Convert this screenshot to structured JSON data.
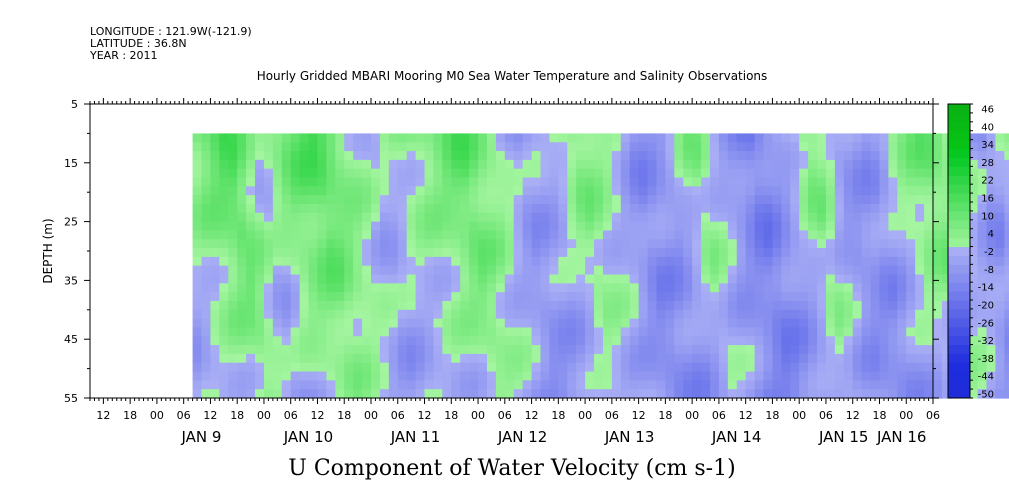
{
  "header": {
    "longitude": "LONGITUDE : 121.9W(-121.9)",
    "latitude": "LATITUDE : 36.8N",
    "year": "YEAR : 2011"
  },
  "chart_data": {
    "type": "heatmap",
    "title": "Hourly Gridded MBARI Mooring M0 Sea Water Temperature and Salinity Observations",
    "xlabel": "U Component of Water Velocity (cm s-1)",
    "ylabel": "DEPTH (m)",
    "y_ticks": [
      "5",
      "15",
      "25",
      "35",
      "45",
      "55"
    ],
    "y_tick_values": [
      5,
      15,
      25,
      35,
      45,
      55
    ],
    "ylim": [
      5,
      55
    ],
    "data_depth_range": [
      10,
      55
    ],
    "x_hour_ticks": [
      "12",
      "18",
      "00",
      "06",
      "12",
      "18",
      "00",
      "06",
      "12",
      "18",
      "00",
      "06",
      "12",
      "18",
      "00",
      "06",
      "12",
      "18",
      "00",
      "06",
      "12",
      "18",
      "00",
      "06",
      "12",
      "18",
      "00",
      "06",
      "12",
      "18",
      "00",
      "06",
      "12",
      "18",
      "00",
      "06"
    ],
    "x_date_labels": [
      "JAN  9",
      "JAN 10",
      "JAN 11",
      "JAN 12",
      "JAN 13",
      "JAN 14",
      "JAN 15",
      "JAN 16"
    ],
    "xlim": [
      "2011-01-08 09:00",
      "2011-01-16 15:00"
    ],
    "data_time_range": [
      "2011-01-08 17:00",
      "2011-01-16 14:00"
    ],
    "colorbar": {
      "labels": [
        "46",
        "40",
        "34",
        "28",
        "22",
        "16",
        "10",
        "4",
        "-2",
        "-8",
        "-14",
        "-20",
        "-26",
        "-32",
        "-38",
        "-44",
        "-50"
      ],
      "range": [
        -50,
        49
      ],
      "step": 3
    },
    "approx_surface_u_profile": {
      "hours": [
        "JAN 8 18",
        "JAN 9 06",
        "JAN 9 18",
        "JAN 10 00",
        "JAN 10 06",
        "JAN 10 12",
        "JAN 10 18",
        "JAN 11 00",
        "JAN 11 06",
        "JAN 11 12",
        "JAN 11 18",
        "JAN 12 00",
        "JAN 12 06",
        "JAN 12 12",
        "JAN 12 18",
        "JAN 13 00",
        "JAN 13 06",
        "JAN 13 12",
        "JAN 13 18",
        "JAN 14 00",
        "JAN 14 06",
        "JAN 14 12",
        "JAN 14 18",
        "JAN 15 00",
        "JAN 15 06",
        "JAN 15 12",
        "JAN 15 18",
        "JAN 16 00",
        "JAN 16 06",
        "JAN 16 12"
      ],
      "u_cm_s": [
        10,
        18,
        0,
        12,
        18,
        8,
        -2,
        4,
        8,
        16,
        6,
        -6,
        -2,
        10,
        2,
        -10,
        -6,
        8,
        -4,
        -14,
        -4,
        10,
        -6,
        -8,
        4,
        12,
        4,
        -8,
        6,
        -4
      ]
    }
  }
}
